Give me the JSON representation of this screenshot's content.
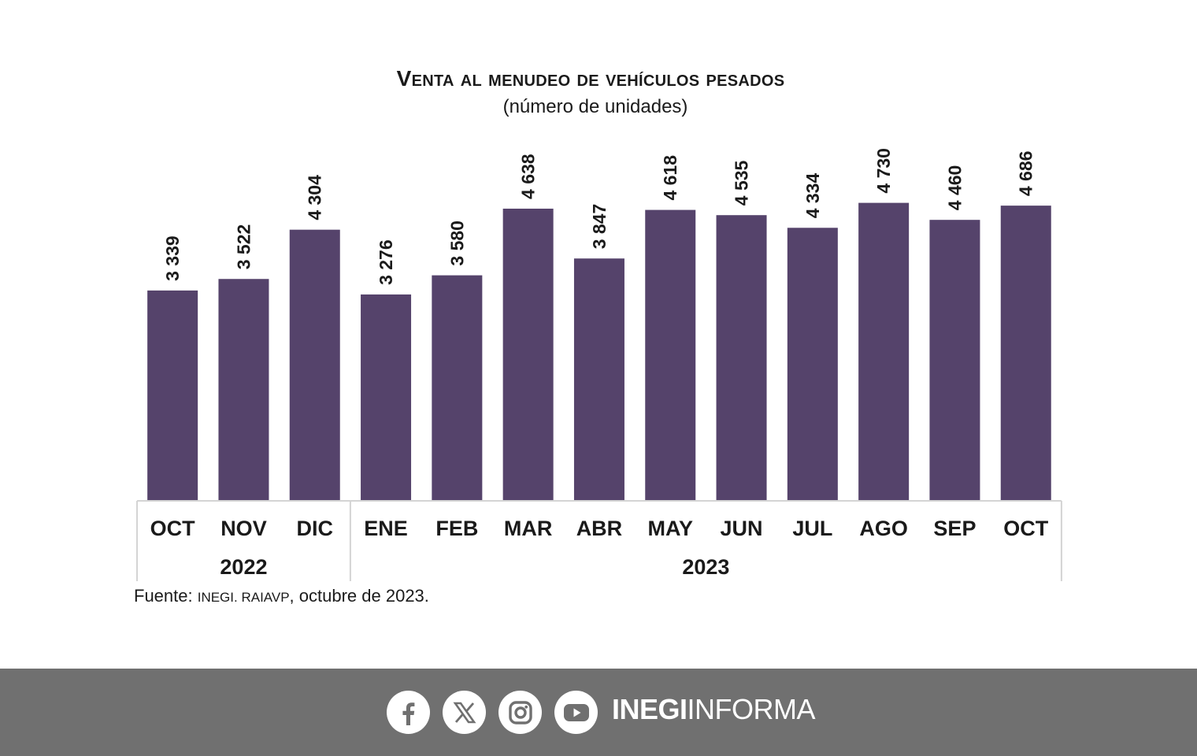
{
  "chart_data": {
    "type": "bar",
    "title": "Venta al menudeo de vehículos pesados",
    "subtitle": "(número de unidades)",
    "categories": [
      "OCT",
      "NOV",
      "DIC",
      "ENE",
      "FEB",
      "MAR",
      "ABR",
      "MAY",
      "JUN",
      "JUL",
      "AGO",
      "SEP",
      "OCT"
    ],
    "values": [
      3339,
      3522,
      4304,
      3276,
      3580,
      4638,
      3847,
      4618,
      4535,
      4334,
      4730,
      4460,
      4686
    ],
    "value_labels": [
      "3 339",
      "3 522",
      "4 304",
      "3 276",
      "3 580",
      "4 638",
      "3 847",
      "4 618",
      "4 535",
      "4 334",
      "4 730",
      "4 460",
      "4 686"
    ],
    "year_groups": [
      {
        "label": "2022",
        "count": 3
      },
      {
        "label": "2023",
        "count": 10
      }
    ],
    "ylim": [
      0,
      5000
    ],
    "xlabel": "",
    "ylabel": "",
    "grid": false,
    "bar_color": "#55436b"
  },
  "source": {
    "prefix": "Fuente: ",
    "org": "INEGI. RAIAVP",
    "suffix": ", octubre de 2023."
  },
  "footer": {
    "social_icons": [
      "facebook-icon",
      "x-icon",
      "instagram-icon",
      "youtube-icon"
    ],
    "brand_bold": "INEGI",
    "brand_light": "INFORMA",
    "background": "#707070"
  }
}
